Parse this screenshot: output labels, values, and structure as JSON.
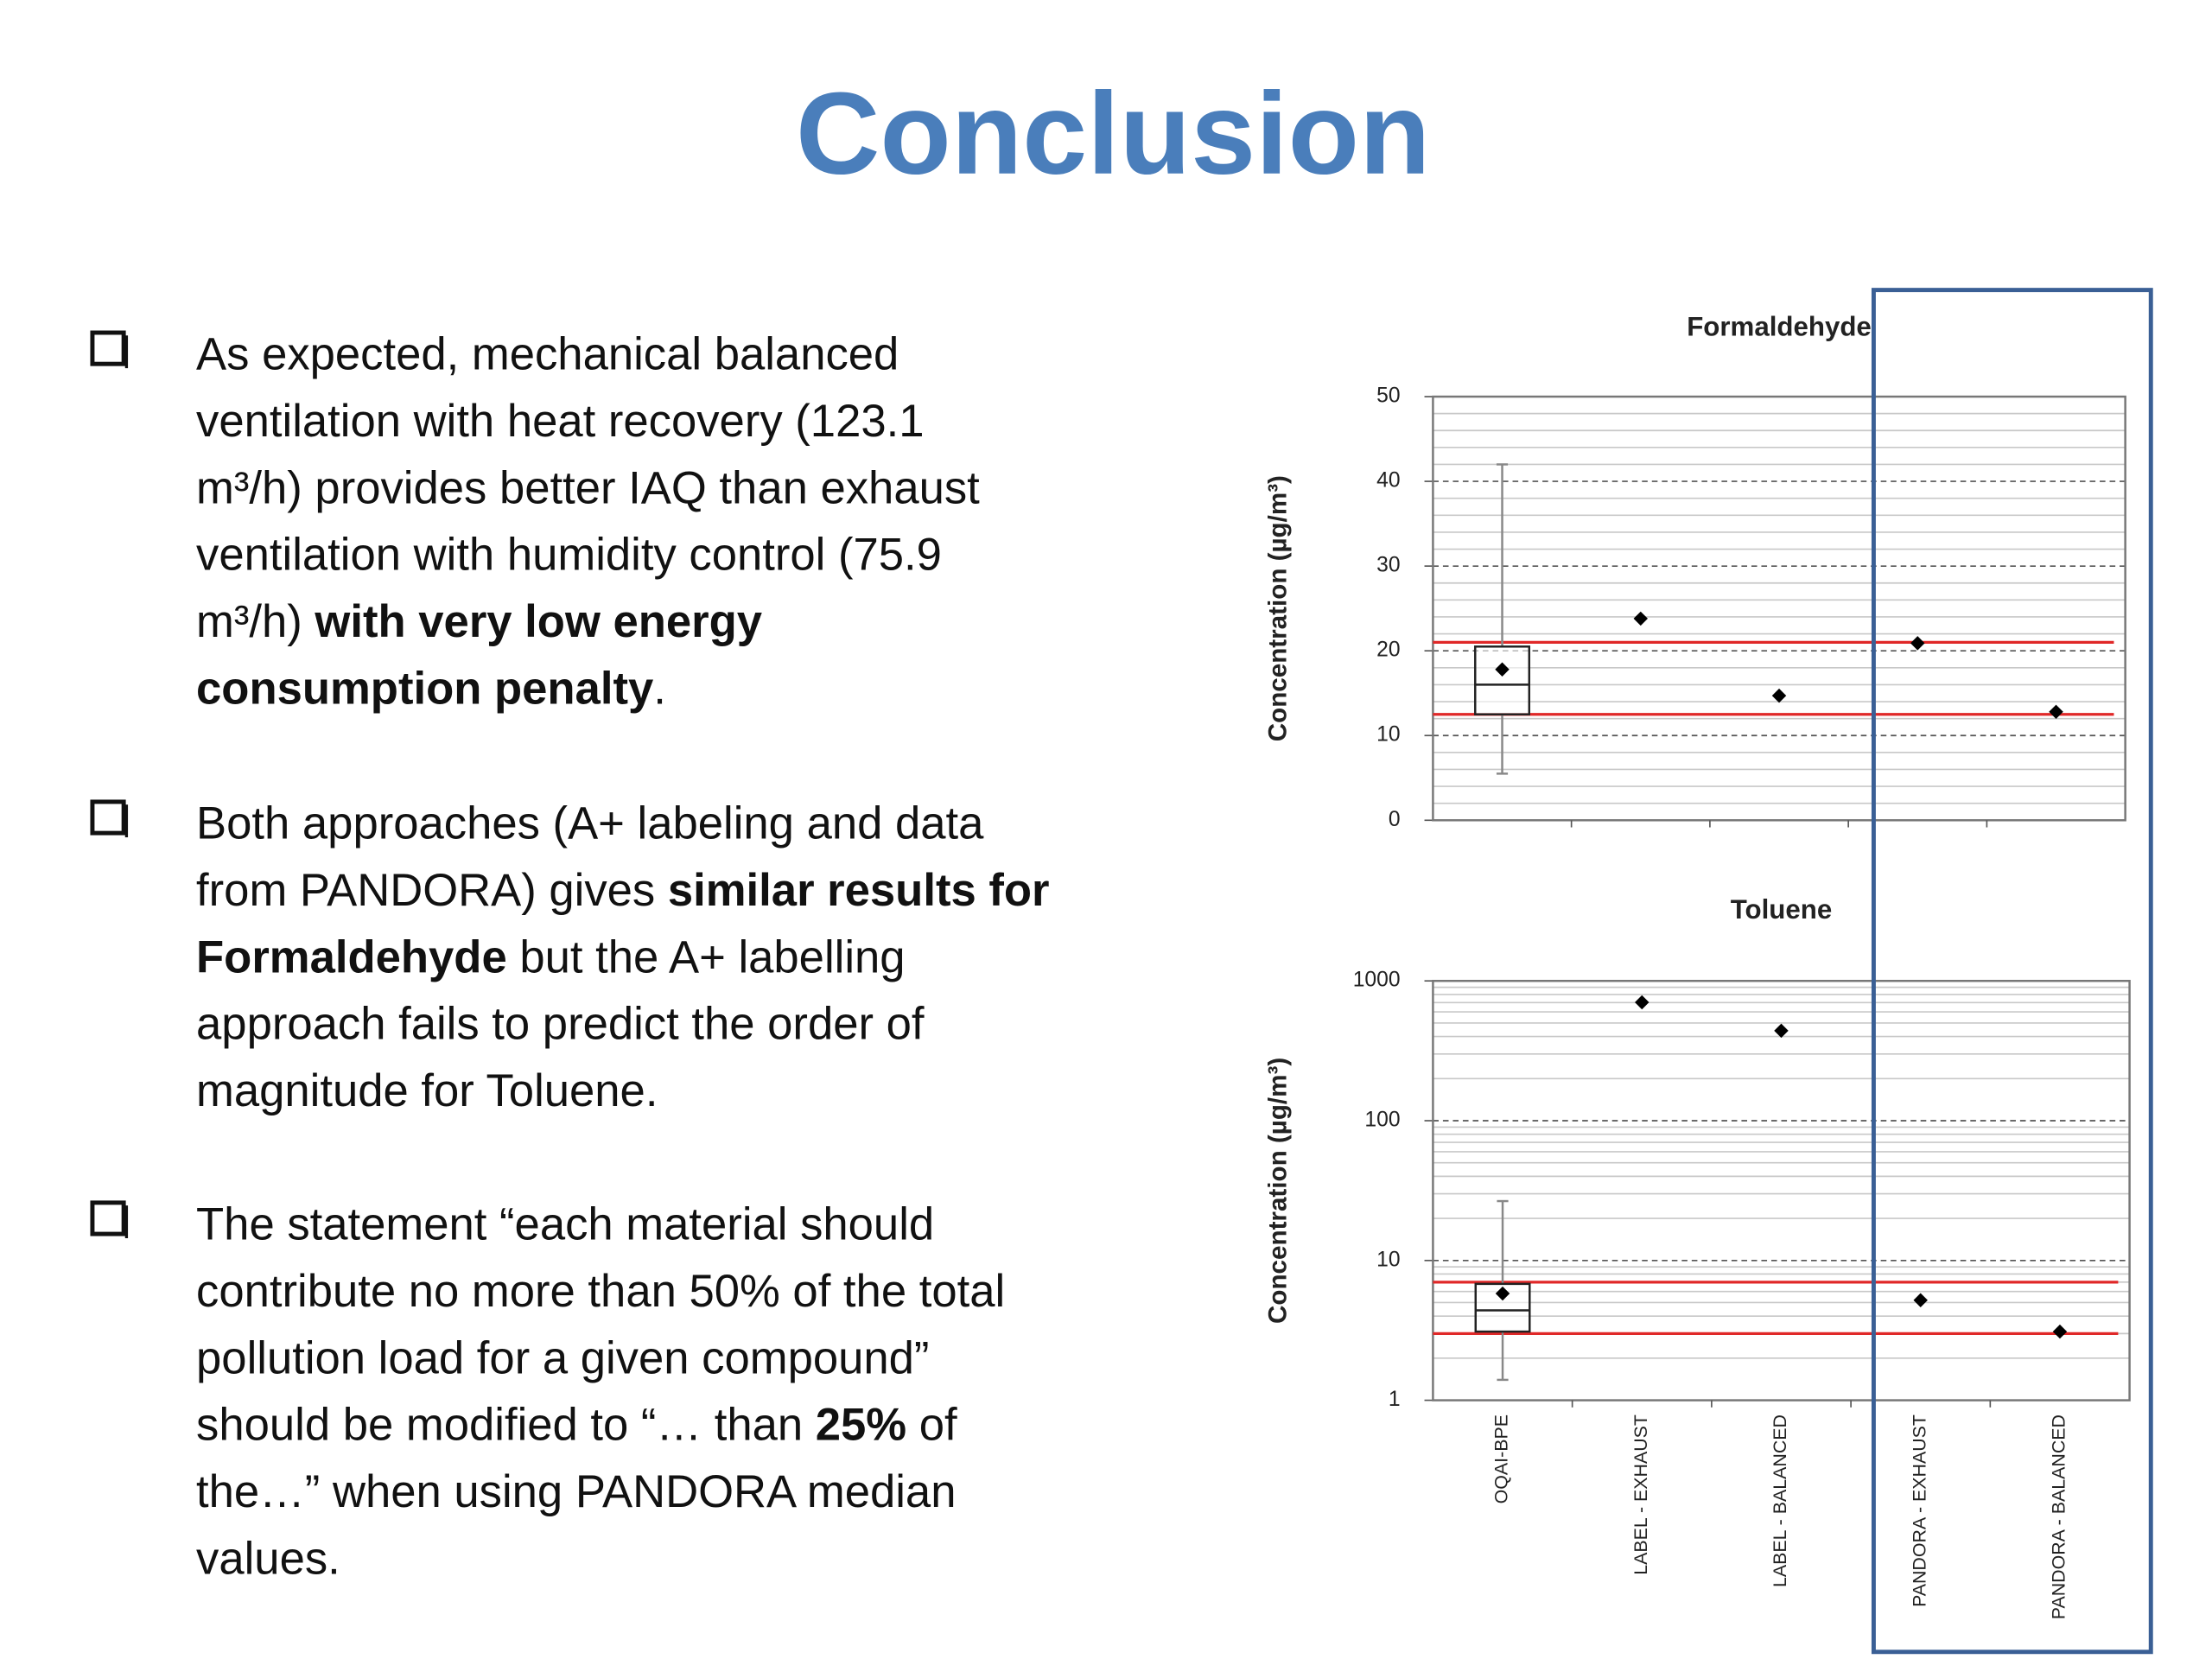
{
  "title": "Conclusion",
  "bullets": [
    {
      "lines": [
        [
          {
            "text": "As expected, mechanical balanced",
            "bold": false
          }
        ],
        [
          {
            "text": "ventilation with heat recovery (123.1",
            "bold": false
          }
        ],
        [
          {
            "text": "m³/h) provides better IAQ than exhaust",
            "bold": false
          }
        ],
        [
          {
            "text": "ventilation with humidity control (75.9",
            "bold": false
          }
        ],
        [
          {
            "text": "m³/h) ",
            "bold": false
          },
          {
            "text": "with very low energy",
            "bold": true
          }
        ],
        [
          {
            "text": "consumption penalty",
            "bold": true
          },
          {
            "text": ".",
            "bold": false
          }
        ]
      ]
    },
    {
      "lines": [
        [
          {
            "text": "Both approaches (A+ labeling and data",
            "bold": false
          }
        ],
        [
          {
            "text": "from PANDORA) gives ",
            "bold": false
          },
          {
            "text": "similar results for",
            "bold": true
          }
        ],
        [
          {
            "text": "Formaldehyde",
            "bold": true
          },
          {
            "text": " but the A+ labelling",
            "bold": false
          }
        ],
        [
          {
            "text": "approach fails to predict the order of",
            "bold": false
          }
        ],
        [
          {
            "text": "magnitude for Toluene.",
            "bold": false
          }
        ]
      ]
    },
    {
      "lines": [
        [
          {
            "text": "The statement “each material should",
            "bold": false
          }
        ],
        [
          {
            "text": "contribute no more than 50% of the total",
            "bold": false
          }
        ],
        [
          {
            "text": "pollution load for a given compound”",
            "bold": false
          }
        ],
        [
          {
            "text": "should be modified to “… than ",
            "bold": false
          },
          {
            "text": "25%",
            "bold": true
          },
          {
            "text": " of",
            "bold": false
          }
        ],
        [
          {
            "text": "the…” when using PANDORA median",
            "bold": false
          }
        ],
        [
          {
            "text": "values.",
            "bold": false
          }
        ]
      ]
    }
  ],
  "chart_data": [
    {
      "type": "box",
      "title": "Formaldehyde",
      "y_label": "Concentration (µg/m³)",
      "categories": [
        null,
        null,
        null,
        null,
        null
      ],
      "values": [
        17.8,
        23.8,
        14.7,
        20.9,
        12.8
      ],
      "boxes": [
        {
          "whisker_low": 5.5,
          "q1": 12.5,
          "median": 16,
          "q3": 20.5,
          "whisker_high": 42
        },
        null,
        null,
        null,
        null
      ],
      "reference_lines": [
        21,
        12.5
      ],
      "reference_color": "#e02828",
      "color": "#000000",
      "ylim": [
        0,
        50
      ],
      "yticks": [
        0,
        10,
        20,
        30,
        40,
        50
      ],
      "log_scale": false,
      "grid": true,
      "minor_grid": true
    },
    {
      "type": "box",
      "title": "Toluene",
      "y_label": "Concentration (µg/m³)",
      "categories": [
        "OQAI-BPE",
        "LABEL - EXHAUST",
        "LABEL - BALANCED",
        "PANDORA - EXHAUST",
        "PANDORA - BALANCED"
      ],
      "values": [
        5.8,
        703,
        440,
        5.2,
        3.1
      ],
      "boxes": [
        {
          "whisker_low": 1.4,
          "q1": 3.1,
          "median": 4.4,
          "q3": 6.8,
          "whisker_high": 26.6
        },
        null,
        null,
        null,
        null
      ],
      "reference_lines": [
        7,
        3
      ],
      "reference_color": "#e02828",
      "color": "#000000",
      "ylim": [
        1,
        1000
      ],
      "yticks": [
        1,
        10,
        100,
        1000
      ],
      "log_scale": true,
      "grid": true,
      "minor_grid": true
    }
  ]
}
